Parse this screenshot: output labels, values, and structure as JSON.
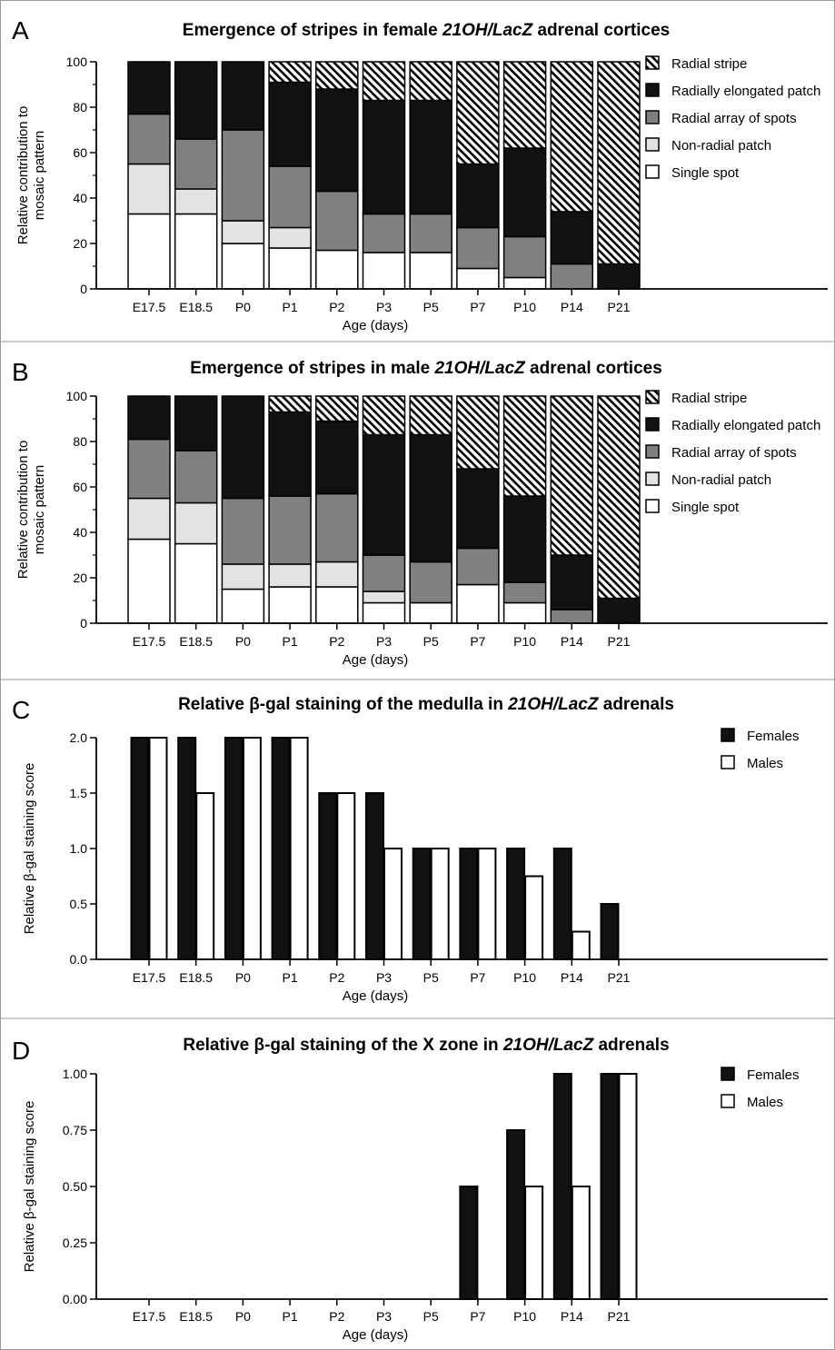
{
  "chart_data": [
    {
      "panel": "A",
      "type": "bar",
      "stacked": true,
      "title_parts": [
        {
          "text": "Emergence of stripes in female ",
          "italic": false
        },
        {
          "text": "21OH/LacZ",
          "italic": true
        },
        {
          "text": " adrenal cortices",
          "italic": false
        }
      ],
      "xlabel": "Age (days)",
      "ylabel_lines": [
        "Relative contribution to",
        "mosaic pattern"
      ],
      "ylim": [
        0,
        100
      ],
      "yticks": [
        "0",
        "20",
        "40",
        "60",
        "80",
        "100"
      ],
      "categories": [
        "E17.5",
        "E18.5",
        "P0",
        "P1",
        "P2",
        "P3",
        "P5",
        "P7",
        "P10",
        "P14",
        "P21"
      ],
      "legend_position": "top-right",
      "series": [
        {
          "name": "Single spot",
          "style": "white",
          "values": [
            33,
            33,
            20,
            18,
            17,
            16,
            16,
            9,
            5,
            0,
            0
          ]
        },
        {
          "name": "Non-radial patch",
          "style": "light",
          "values": [
            22,
            11,
            10,
            9,
            0,
            0,
            0,
            0,
            0,
            0,
            0
          ]
        },
        {
          "name": "Radial array of spots",
          "style": "gray",
          "values": [
            22,
            22,
            40,
            27,
            26,
            17,
            17,
            18,
            18,
            11,
            0
          ]
        },
        {
          "name": "Radially elongated patch",
          "style": "black",
          "values": [
            23,
            34,
            30,
            37,
            45,
            50,
            50,
            28,
            39,
            23,
            11
          ]
        },
        {
          "name": "Radial stripe",
          "style": "hatch",
          "values": [
            0,
            0,
            0,
            9,
            12,
            17,
            17,
            45,
            38,
            66,
            89
          ]
        }
      ]
    },
    {
      "panel": "B",
      "type": "bar",
      "stacked": true,
      "title_parts": [
        {
          "text": "Emergence of stripes in male ",
          "italic": false
        },
        {
          "text": "21OH/LacZ",
          "italic": true
        },
        {
          "text": " adrenal cortices",
          "italic": false
        }
      ],
      "xlabel": "Age (days)",
      "ylabel_lines": [
        "Relative contribution to",
        "mosaic pattern"
      ],
      "ylim": [
        0,
        100
      ],
      "yticks": [
        "0",
        "20",
        "40",
        "60",
        "80",
        "100"
      ],
      "categories": [
        "E17.5",
        "E18.5",
        "P0",
        "P1",
        "P2",
        "P3",
        "P5",
        "P7",
        "P10",
        "P14",
        "P21"
      ],
      "legend_position": "top-right",
      "series": [
        {
          "name": "Single spot",
          "style": "white",
          "values": [
            37,
            35,
            15,
            16,
            16,
            9,
            9,
            17,
            9,
            0,
            0
          ]
        },
        {
          "name": "Non-radial patch",
          "style": "light",
          "values": [
            18,
            18,
            11,
            10,
            11,
            5,
            0,
            0,
            0,
            0,
            0
          ]
        },
        {
          "name": "Radial array of spots",
          "style": "gray",
          "values": [
            26,
            23,
            29,
            30,
            30,
            16,
            18,
            16,
            9,
            6,
            0
          ]
        },
        {
          "name": "Radially elongated patch",
          "style": "black",
          "values": [
            19,
            24,
            45,
            37,
            32,
            53,
            56,
            35,
            38,
            24,
            11
          ]
        },
        {
          "name": "Radial stripe",
          "style": "hatch",
          "values": [
            0,
            0,
            0,
            7,
            11,
            17,
            17,
            32,
            44,
            70,
            89
          ]
        }
      ]
    },
    {
      "panel": "C",
      "type": "bar",
      "stacked": false,
      "title_parts": [
        {
          "text": "Relative β-gal staining of the medulla in ",
          "italic": false
        },
        {
          "text": "21OH/LacZ",
          "italic": true
        },
        {
          "text": " adrenals",
          "italic": false
        }
      ],
      "xlabel": "Age (days)",
      "ylabel_lines": [
        "Relative β-gal staining score"
      ],
      "ylim": [
        0,
        2
      ],
      "yticks": [
        "0.0",
        "0.5",
        "1.0",
        "1.5",
        "2.0"
      ],
      "categories": [
        "E17.5",
        "E18.5",
        "P0",
        "P1",
        "P2",
        "P3",
        "P5",
        "P7",
        "P10",
        "P14",
        "P21"
      ],
      "legend_position": "top-right",
      "series": [
        {
          "name": "Females",
          "style": "black",
          "values": [
            2.0,
            2.0,
            2.0,
            2.0,
            1.5,
            1.5,
            1.0,
            1.0,
            1.0,
            1.0,
            0.5
          ]
        },
        {
          "name": "Males",
          "style": "white",
          "values": [
            2.0,
            1.5,
            2.0,
            2.0,
            1.5,
            1.0,
            1.0,
            1.0,
            0.75,
            0.25,
            0
          ]
        }
      ]
    },
    {
      "panel": "D",
      "type": "bar",
      "stacked": false,
      "title_parts": [
        {
          "text": "Relative β-gal staining of the X zone in ",
          "italic": false
        },
        {
          "text": "21OH/LacZ",
          "italic": true
        },
        {
          "text": " adrenals",
          "italic": false
        }
      ],
      "xlabel": "Age (days)",
      "ylabel_lines": [
        "Relative β-gal staining score"
      ],
      "ylim": [
        0,
        1
      ],
      "yticks": [
        "0.00",
        "0.25",
        "0.50",
        "0.75",
        "1.00"
      ],
      "categories": [
        "E17.5",
        "E18.5",
        "P0",
        "P1",
        "P2",
        "P3",
        "P5",
        "P7",
        "P10",
        "P14",
        "P21"
      ],
      "legend_position": "top-right",
      "series": [
        {
          "name": "Females",
          "style": "black",
          "values": [
            0,
            0,
            0,
            0,
            0,
            0,
            0,
            0.5,
            0.75,
            1.0,
            1.0
          ]
        },
        {
          "name": "Males",
          "style": "white",
          "values": [
            0,
            0,
            0,
            0,
            0,
            0,
            0,
            0,
            0.5,
            0.5,
            1.0
          ]
        }
      ]
    }
  ]
}
